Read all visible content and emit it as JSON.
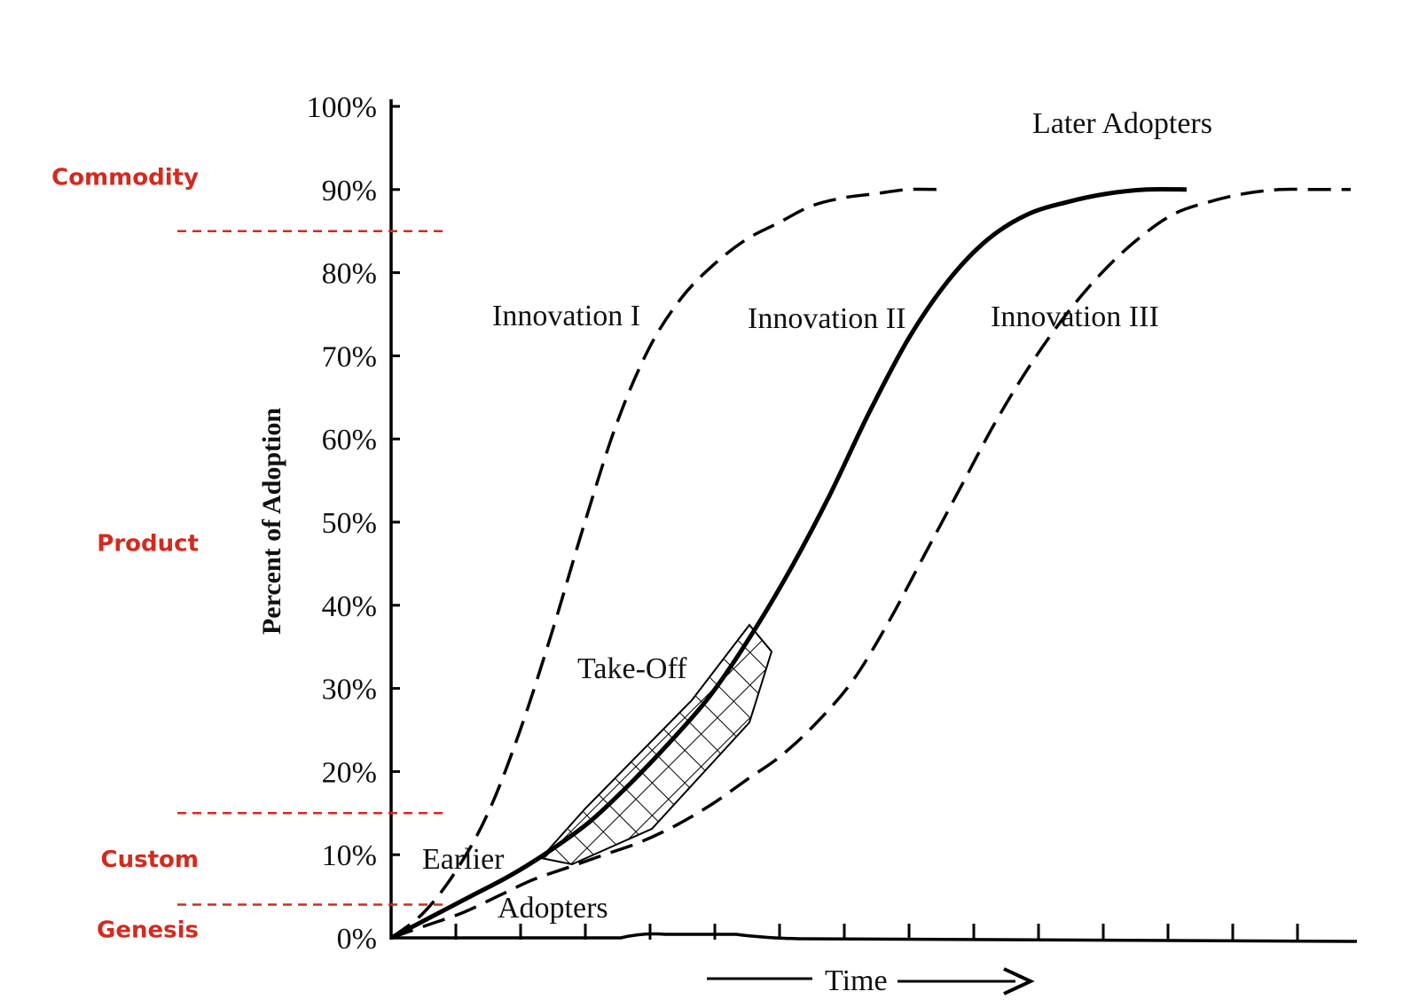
{
  "chart_data": {
    "type": "line",
    "ylabel": "Percent of Adoption",
    "xlabel": "Time",
    "ylim": [
      0,
      100
    ],
    "yticks": [
      "0%",
      "10%",
      "20%",
      "30%",
      "40%",
      "50%",
      "60%",
      "70%",
      "80%",
      "90%",
      "100%"
    ],
    "grid": false,
    "series": [
      {
        "name": "Innovation I",
        "style": "dashed",
        "x": [
          0,
          0.5,
          1,
          1.5,
          2,
          2.5,
          3,
          3.5,
          4,
          4.5,
          5,
          5.5,
          6,
          6.5,
          7,
          7.5,
          8,
          8.5
        ],
        "y": [
          0,
          3,
          8,
          15,
          25,
          37,
          50,
          62,
          71,
          77,
          81,
          84,
          86,
          88,
          89,
          89.5,
          90,
          90
        ]
      },
      {
        "name": "Innovation II",
        "style": "solid",
        "x": [
          0,
          1,
          2,
          3,
          4,
          5,
          6,
          7,
          8,
          9,
          10,
          11,
          12,
          13,
          14,
          15,
          16,
          17,
          18,
          19,
          20
        ],
        "y": [
          0,
          2.5,
          5,
          7.5,
          10.5,
          14,
          18.5,
          23.5,
          29,
          36,
          44,
          53,
          63,
          72,
          79,
          84,
          87,
          88.5,
          89.5,
          90,
          90
        ]
      },
      {
        "name": "Innovation III",
        "style": "dashed",
        "x": [
          0,
          1,
          2,
          3,
          4,
          5,
          6,
          7,
          8,
          9,
          10,
          11,
          12,
          13,
          14,
          15,
          16,
          17,
          18,
          19,
          20,
          21,
          22,
          23,
          24,
          25,
          26,
          27
        ],
        "y": [
          0,
          1.5,
          3,
          5,
          7,
          8.5,
          10,
          11.5,
          13.5,
          16,
          19,
          22,
          26,
          31,
          38,
          46,
          54,
          62,
          69,
          75,
          80,
          84,
          87,
          88.5,
          89.5,
          90,
          90,
          90
        ]
      }
    ],
    "annotations": {
      "later_adopters": "Later Adopters",
      "innovation_1": "Innovation I",
      "innovation_2": "Innovation II",
      "innovation_3": "Innovation III",
      "take_off": "Take-Off",
      "earlier": "Earlier",
      "adopters": "Adopters"
    },
    "stages": [
      {
        "label": "Commodity",
        "color": "#d42a1e"
      },
      {
        "label": "Product",
        "color": "#d42a1e"
      },
      {
        "label": "Custom",
        "color": "#d42a1e"
      },
      {
        "label": "Genesis",
        "color": "#d42a1e"
      }
    ],
    "stage_boundaries": [
      85,
      15,
      4
    ]
  }
}
